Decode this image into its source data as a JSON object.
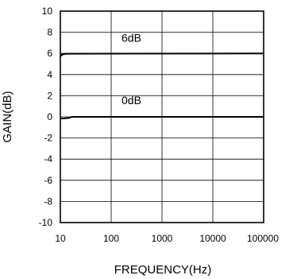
{
  "chart_data": {
    "type": "line",
    "title": "",
    "xlabel": "FREQUENCY(Hz)",
    "ylabel": "GAIN(dB)",
    "x_scale": "log",
    "xlim": [
      10,
      100000
    ],
    "ylim": [
      -10,
      10
    ],
    "x_ticks": [
      10,
      100,
      1000,
      10000,
      100000
    ],
    "x_tick_labels": [
      "10",
      "100",
      "1000",
      "10000",
      "100000"
    ],
    "y_ticks": [
      10,
      8,
      6,
      4,
      2,
      0,
      -2,
      -4,
      -6,
      -8,
      -10
    ],
    "y_tick_labels": [
      "10",
      "8",
      "6",
      "4",
      "2",
      "0",
      "-2",
      "-4",
      "-6",
      "-8",
      "-10"
    ],
    "grid": true,
    "series": [
      {
        "x": [
          10,
          11,
          13,
          100000
        ],
        "y": [
          5.75,
          5.9,
          5.97,
          6.0
        ]
      },
      {
        "x": [
          10,
          11,
          12,
          15,
          17,
          100000
        ],
        "y": [
          -0.15,
          -0.15,
          -0.15,
          -0.1,
          0.0,
          0.0
        ]
      }
    ],
    "annotations": [
      {
        "text": "6dB",
        "x": 250,
        "y": 7.1
      },
      {
        "text": "0dB",
        "x": 250,
        "y": 1.2
      }
    ],
    "colors": {
      "line": "#000000",
      "grid": "#000000",
      "background": "#ffffff"
    }
  }
}
